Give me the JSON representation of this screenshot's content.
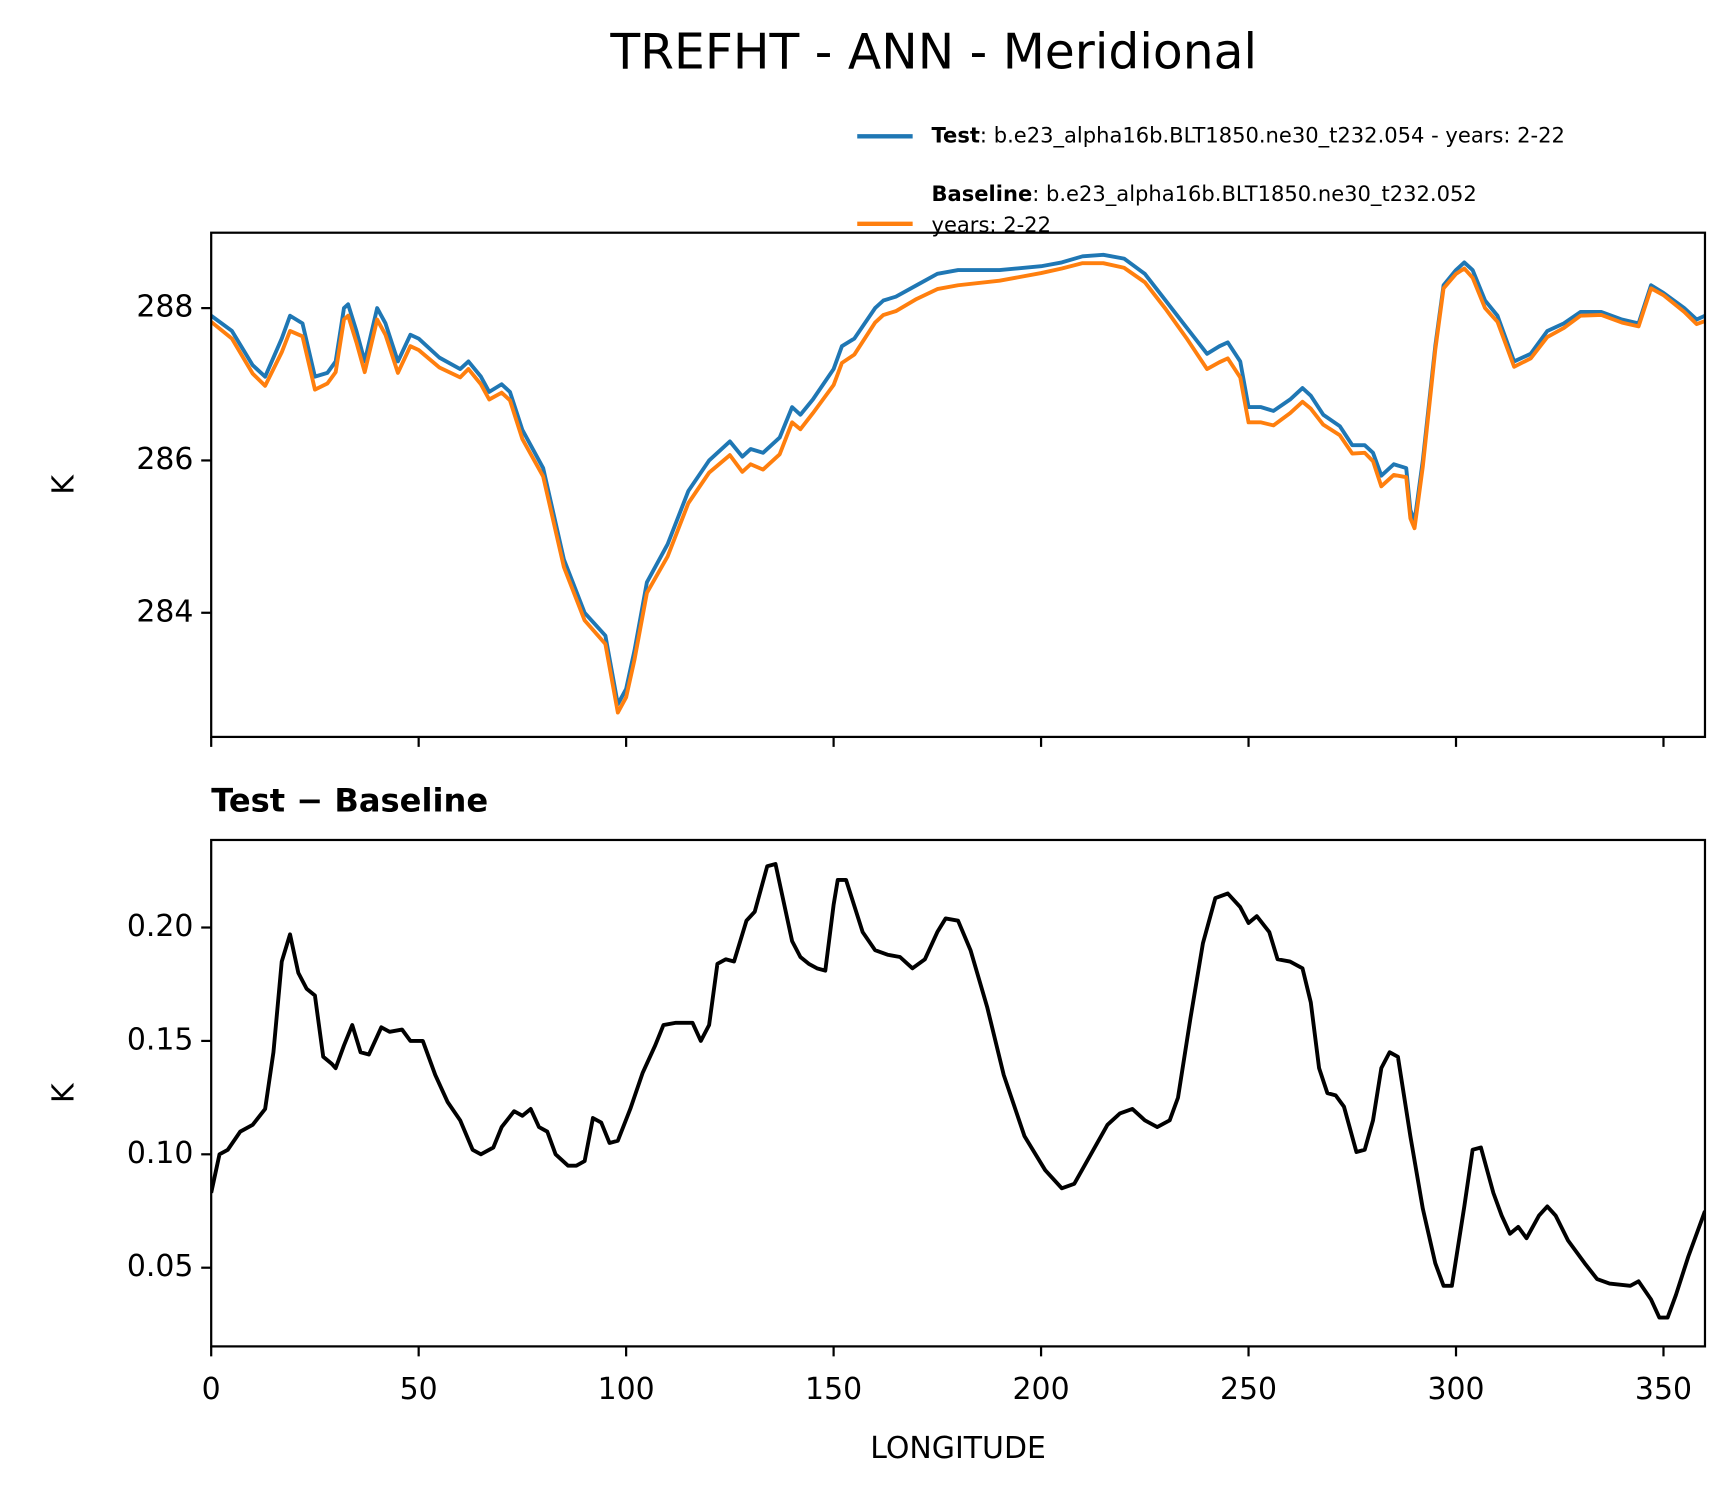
{
  "title": "TREFHT - ANN - Meridional",
  "chart_data": [
    {
      "type": "line",
      "ylabel": "K",
      "xlim": [
        0,
        360
      ],
      "xticks": [
        0,
        50,
        100,
        150,
        200,
        250,
        300,
        350
      ],
      "show_xtick_labels": false,
      "ylim": [
        282.37,
        288.99
      ],
      "yticks": [
        284,
        286,
        288
      ],
      "x": [
        0,
        5,
        10,
        13,
        17,
        19,
        22,
        25,
        28,
        30,
        32,
        33,
        35,
        37,
        40,
        42,
        45,
        48,
        50,
        55,
        60,
        62,
        65,
        67,
        70,
        72,
        75,
        80,
        85,
        90,
        95,
        98,
        100,
        102,
        105,
        110,
        115,
        120,
        125,
        128,
        130,
        133,
        137,
        140,
        142,
        145,
        150,
        152,
        155,
        160,
        162,
        165,
        170,
        175,
        180,
        190,
        200,
        205,
        210,
        215,
        220,
        225,
        230,
        235,
        240,
        243,
        245,
        248,
        250,
        253,
        256,
        260,
        263,
        265,
        268,
        272,
        275,
        278,
        280,
        282,
        285,
        288,
        289,
        290,
        292,
        295,
        297,
        300,
        302,
        304,
        307,
        310,
        314,
        318,
        322,
        326,
        330,
        335,
        340,
        344,
        347,
        350,
        355,
        358,
        360
      ],
      "series": [
        {
          "name": "Test",
          "description": [
            ": b.e23_alpha16b.BLT1850.ne30_t232.054 - years: 2-22"
          ],
          "color": "#1f77b4",
          "values": [
            287.9,
            287.7,
            287.25,
            287.1,
            287.6,
            287.9,
            287.8,
            287.1,
            287.15,
            287.3,
            288.0,
            288.05,
            287.7,
            287.3,
            288.0,
            287.8,
            287.3,
            287.65,
            287.6,
            287.35,
            287.2,
            287.3,
            287.1,
            286.9,
            287.0,
            286.9,
            286.4,
            285.9,
            284.7,
            284.0,
            283.7,
            282.8,
            283.0,
            283.5,
            284.4,
            284.9,
            285.6,
            286.0,
            286.25,
            286.05,
            286.15,
            286.1,
            286.3,
            286.7,
            286.6,
            286.8,
            287.2,
            287.5,
            287.6,
            288.0,
            288.1,
            288.15,
            288.3,
            288.45,
            288.5,
            288.5,
            288.55,
            288.6,
            288.68,
            288.7,
            288.65,
            288.45,
            288.1,
            287.75,
            287.4,
            287.5,
            287.55,
            287.3,
            286.7,
            286.7,
            286.65,
            286.8,
            286.95,
            286.85,
            286.6,
            286.45,
            286.2,
            286.2,
            286.1,
            285.8,
            285.95,
            285.9,
            285.35,
            285.2,
            286.0,
            287.5,
            288.3,
            288.5,
            288.6,
            288.5,
            288.1,
            287.9,
            287.3,
            287.4,
            287.7,
            287.8,
            287.95,
            287.95,
            287.85,
            287.8,
            288.3,
            288.2,
            288.0,
            287.85,
            287.9
          ]
        },
        {
          "name": "Baseline",
          "description": [
            ": b.e23_alpha16b.BLT1850.ne30_t232.052",
            "years: 2-22"
          ],
          "color": "#ff7f0e",
          "values": [
            287.82,
            287.6,
            287.14,
            286.98,
            287.42,
            287.7,
            287.63,
            286.93,
            287.01,
            287.16,
            287.85,
            287.9,
            287.55,
            287.16,
            287.85,
            287.65,
            287.15,
            287.5,
            287.45,
            287.22,
            287.09,
            287.2,
            287.0,
            286.8,
            286.89,
            286.79,
            286.28,
            285.79,
            284.6,
            283.9,
            283.59,
            282.69,
            282.89,
            283.38,
            284.26,
            284.74,
            285.44,
            285.84,
            286.07,
            285.85,
            285.95,
            285.88,
            286.08,
            286.5,
            286.41,
            286.62,
            286.99,
            287.28,
            287.39,
            287.81,
            287.91,
            287.96,
            288.12,
            288.25,
            288.3,
            288.36,
            288.46,
            288.52,
            288.59,
            288.59,
            288.53,
            288.34,
            287.99,
            287.61,
            287.2,
            287.29,
            287.34,
            287.09,
            286.5,
            286.5,
            286.46,
            286.62,
            286.77,
            286.68,
            286.47,
            286.33,
            286.09,
            286.1,
            285.99,
            285.66,
            285.81,
            285.78,
            285.24,
            285.11,
            285.92,
            287.45,
            288.26,
            288.45,
            288.52,
            288.4,
            288.0,
            287.82,
            287.23,
            287.34,
            287.62,
            287.74,
            287.9,
            287.91,
            287.81,
            287.76,
            288.26,
            288.17,
            287.95,
            287.79,
            287.83
          ]
        }
      ]
    },
    {
      "type": "line",
      "title": "Test − Baseline",
      "xlabel": "LONGITUDE",
      "ylabel": "K",
      "xlim": [
        0,
        360
      ],
      "xticks": [
        0,
        50,
        100,
        150,
        200,
        250,
        300,
        350
      ],
      "show_xtick_labels": true,
      "ylim": [
        0.0153,
        0.2386
      ],
      "yticks": [
        0.05,
        {
          "value": 0.1,
          "label": "0.10"
        },
        0.15,
        {
          "value": 0.2,
          "label": "0.20"
        }
      ],
      "x": [
        0,
        2,
        4,
        7,
        10,
        13,
        15,
        17,
        19,
        21,
        23,
        25,
        27,
        29,
        30,
        32,
        34,
        36,
        38,
        41,
        43,
        46,
        48,
        51,
        54,
        57,
        60,
        63,
        65,
        68,
        70,
        73,
        75,
        77,
        79,
        81,
        83,
        86,
        88,
        90,
        92,
        94,
        96,
        98,
        101,
        104,
        107,
        109,
        112,
        116,
        118,
        120,
        122,
        124,
        126,
        129,
        131,
        134,
        136,
        140,
        142,
        144,
        146,
        148,
        150,
        151,
        153,
        157,
        160,
        163,
        166,
        169,
        172,
        175,
        177,
        180,
        183,
        187,
        191,
        196,
        201,
        205,
        208,
        212,
        216,
        219,
        222,
        225,
        228,
        231,
        233,
        236,
        239,
        242,
        245,
        248,
        250,
        252,
        255,
        257,
        260,
        263,
        265,
        267,
        269,
        271,
        273,
        276,
        278,
        280,
        282,
        284,
        286,
        289,
        292,
        295,
        297,
        299,
        302,
        304,
        306,
        309,
        311,
        313,
        315,
        317,
        320,
        322,
        324,
        327,
        331,
        334,
        337,
        342,
        344,
        347,
        349,
        351,
        353,
        356,
        360
      ],
      "series": [
        {
          "name": "Test − Baseline",
          "color": "#000000",
          "values": [
            0.083,
            0.1,
            0.102,
            0.11,
            0.113,
            0.12,
            0.145,
            0.185,
            0.197,
            0.18,
            0.173,
            0.17,
            0.143,
            0.14,
            0.138,
            0.148,
            0.157,
            0.145,
            0.144,
            0.156,
            0.154,
            0.155,
            0.15,
            0.15,
            0.135,
            0.123,
            0.115,
            0.102,
            0.1,
            0.103,
            0.112,
            0.119,
            0.117,
            0.12,
            0.112,
            0.11,
            0.1,
            0.095,
            0.095,
            0.097,
            0.116,
            0.114,
            0.105,
            0.106,
            0.12,
            0.136,
            0.148,
            0.157,
            0.158,
            0.158,
            0.15,
            0.157,
            0.184,
            0.186,
            0.185,
            0.203,
            0.207,
            0.227,
            0.228,
            0.194,
            0.187,
            0.184,
            0.182,
            0.181,
            0.21,
            0.221,
            0.221,
            0.198,
            0.19,
            0.188,
            0.187,
            0.182,
            0.186,
            0.198,
            0.204,
            0.203,
            0.19,
            0.165,
            0.135,
            0.108,
            0.093,
            0.085,
            0.087,
            0.1,
            0.113,
            0.118,
            0.12,
            0.115,
            0.112,
            0.115,
            0.125,
            0.16,
            0.193,
            0.213,
            0.215,
            0.209,
            0.202,
            0.205,
            0.198,
            0.186,
            0.185,
            0.182,
            0.167,
            0.138,
            0.127,
            0.126,
            0.121,
            0.101,
            0.102,
            0.115,
            0.138,
            0.145,
            0.143,
            0.108,
            0.076,
            0.052,
            0.042,
            0.042,
            0.077,
            0.102,
            0.103,
            0.083,
            0.073,
            0.065,
            0.068,
            0.063,
            0.073,
            0.077,
            0.073,
            0.062,
            0.052,
            0.045,
            0.043,
            0.042,
            0.044,
            0.036,
            0.028,
            0.028,
            0.038,
            0.055,
            0.075
          ]
        }
      ]
    }
  ]
}
